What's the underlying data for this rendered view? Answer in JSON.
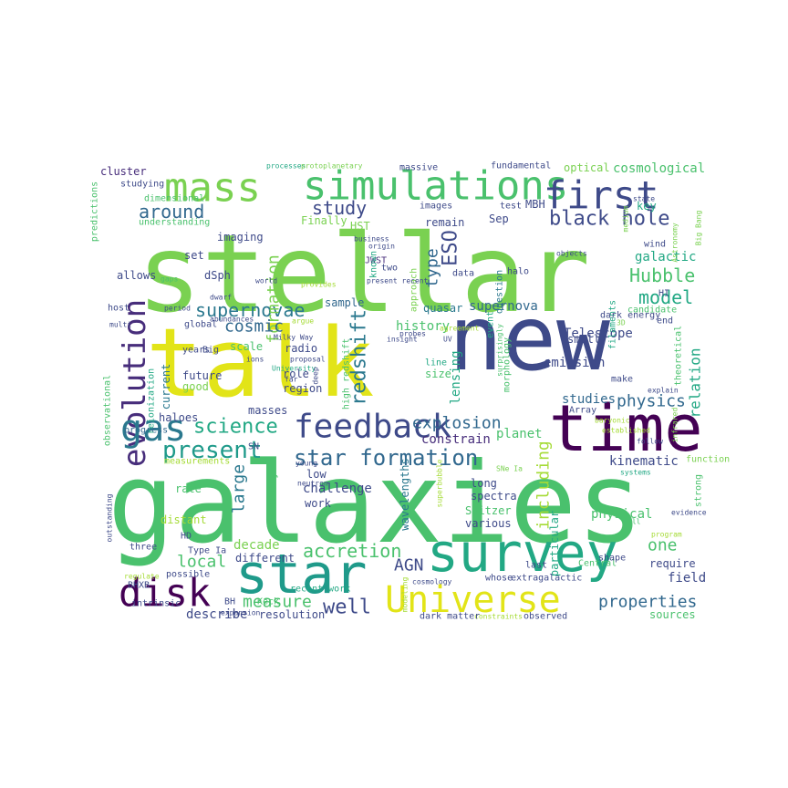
{
  "colors": {
    "yellow": "#e2e418",
    "lime": "#a5db36",
    "green": "#7ad151",
    "mint": "#4ac16d",
    "teal": "#22a884",
    "cyan": "#1f9a8a",
    "steel": "#2a788e",
    "blue": "#31688e",
    "indigo": "#3e4a89",
    "violet": "#472d7b",
    "purple": "#440154"
  },
  "words": [
    {
      "text": "galaxies",
      "color": "mint"
    },
    {
      "text": "stellar",
      "color": "green"
    },
    {
      "text": "new",
      "color": "indigo"
    },
    {
      "text": "talk",
      "color": "yellow"
    },
    {
      "text": "time",
      "color": "purple"
    },
    {
      "text": "survey",
      "color": "teal"
    },
    {
      "text": "star",
      "color": "cyan"
    },
    {
      "text": "disk",
      "color": "purple"
    },
    {
      "text": "Universe",
      "color": "yellow"
    },
    {
      "text": "mass",
      "color": "green"
    },
    {
      "text": "simulations",
      "color": "mint"
    },
    {
      "text": "first",
      "color": "indigo"
    },
    {
      "text": "evolution",
      "color": "violet"
    },
    {
      "text": "feedback",
      "color": "indigo"
    },
    {
      "text": "gas",
      "color": "steel"
    },
    {
      "text": "star formation",
      "color": "blue"
    },
    {
      "text": "science",
      "color": "teal"
    },
    {
      "text": "present",
      "color": "cyan"
    },
    {
      "text": "supernovae",
      "color": "steel"
    },
    {
      "text": "black hole",
      "color": "indigo"
    },
    {
      "text": "around",
      "color": "blue"
    },
    {
      "text": "study",
      "color": "indigo"
    },
    {
      "text": "Hubble",
      "color": "mint"
    },
    {
      "text": "model",
      "color": "teal"
    },
    {
      "text": "explosion",
      "color": "blue"
    },
    {
      "text": "accretion",
      "color": "mint"
    },
    {
      "text": "properties",
      "color": "blue"
    },
    {
      "text": "well",
      "color": "indigo"
    },
    {
      "text": "measure",
      "color": "mint"
    },
    {
      "text": "large",
      "color": "steel"
    },
    {
      "text": "local",
      "color": "mint"
    },
    {
      "text": "AGN",
      "color": "indigo"
    },
    {
      "text": "one",
      "color": "mint"
    },
    {
      "text": "physics",
      "color": "blue"
    },
    {
      "text": "redshift",
      "color": "steel"
    },
    {
      "text": "ESO",
      "color": "indigo"
    },
    {
      "text": "formation",
      "color": "green"
    },
    {
      "text": "cosmic",
      "color": "blue"
    },
    {
      "text": "type",
      "color": "blue"
    },
    {
      "text": "relation",
      "color": "teal"
    },
    {
      "text": "including",
      "color": "lime"
    },
    {
      "text": "cosmological",
      "color": "mint"
    },
    {
      "text": "Telescope",
      "color": "indigo"
    },
    {
      "text": "galactic",
      "color": "teal"
    },
    {
      "text": "field",
      "color": "indigo"
    },
    {
      "text": "supernova",
      "color": "blue"
    },
    {
      "text": "history",
      "color": "mint"
    },
    {
      "text": "studies",
      "color": "blue"
    },
    {
      "text": "constrain",
      "color": "violet"
    },
    {
      "text": "planet",
      "color": "mint"
    },
    {
      "text": "emission",
      "color": "indigo"
    },
    {
      "text": "lensing",
      "color": "teal"
    },
    {
      "text": "kinematic",
      "color": "indigo"
    },
    {
      "text": "describe",
      "color": "indigo"
    },
    {
      "text": "sources",
      "color": "mint"
    },
    {
      "text": "require",
      "color": "indigo"
    },
    {
      "text": "decade",
      "color": "green"
    },
    {
      "text": "physical",
      "color": "mint"
    },
    {
      "text": "discovery",
      "color": "mint"
    },
    {
      "text": "challenge",
      "color": "indigo"
    },
    {
      "text": "wavelengths",
      "color": "steel"
    },
    {
      "text": "spectra",
      "color": "indigo"
    },
    {
      "text": "particular",
      "color": "teal"
    },
    {
      "text": "Spitzer",
      "color": "mint"
    },
    {
      "text": "various",
      "color": "indigo"
    },
    {
      "text": "long",
      "color": "indigo"
    },
    {
      "text": "work",
      "color": "indigo"
    },
    {
      "text": "low",
      "color": "indigo"
    },
    {
      "text": "rate",
      "color": "mint"
    },
    {
      "text": "distant",
      "color": "lime"
    },
    {
      "text": "different",
      "color": "indigo"
    },
    {
      "text": "resolution",
      "color": "indigo"
    },
    {
      "text": "recent work",
      "color": "teal"
    },
    {
      "text": "measurements",
      "color": "lime"
    },
    {
      "text": "progress",
      "color": "blue"
    },
    {
      "text": "haloes",
      "color": "indigo"
    },
    {
      "text": "masses",
      "color": "indigo"
    },
    {
      "text": "SN",
      "color": "indigo"
    },
    {
      "text": "future",
      "color": "indigo"
    },
    {
      "text": "good",
      "color": "green"
    },
    {
      "text": "current",
      "color": "steel"
    },
    {
      "text": "reionization",
      "color": "teal"
    },
    {
      "text": "observational",
      "color": "mint"
    },
    {
      "text": "radio",
      "color": "indigo"
    },
    {
      "text": "scale",
      "color": "mint"
    },
    {
      "text": "role",
      "color": "indigo"
    },
    {
      "text": "region",
      "color": "indigo"
    },
    {
      "text": "high redshift",
      "color": "mint"
    },
    {
      "text": "size",
      "color": "mint"
    },
    {
      "text": "line",
      "color": "teal"
    },
    {
      "text": "morphology",
      "color": "mint"
    },
    {
      "text": "quasar",
      "color": "steel"
    },
    {
      "text": "sample",
      "color": "blue"
    },
    {
      "text": "dSph",
      "color": "indigo"
    },
    {
      "text": "allows",
      "color": "indigo"
    },
    {
      "text": "set",
      "color": "indigo"
    },
    {
      "text": "imaging",
      "color": "indigo"
    },
    {
      "text": "dimensional",
      "color": "mint"
    },
    {
      "text": "understanding",
      "color": "mint"
    },
    {
      "text": "studying",
      "color": "indigo"
    },
    {
      "text": "cluster",
      "color": "violet"
    },
    {
      "text": "predictions",
      "color": "mint"
    },
    {
      "text": "Finally",
      "color": "green"
    },
    {
      "text": "HST",
      "color": "green"
    },
    {
      "text": "images",
      "color": "indigo"
    },
    {
      "text": "remain",
      "color": "indigo"
    },
    {
      "text": "Sep",
      "color": "indigo"
    },
    {
      "text": "MBH",
      "color": "indigo"
    },
    {
      "text": "test",
      "color": "indigo"
    },
    {
      "text": "question",
      "color": "steel"
    },
    {
      "text": "approach",
      "color": "green"
    },
    {
      "text": "JWST",
      "color": "violet"
    },
    {
      "text": "two",
      "color": "indigo"
    },
    {
      "text": "data",
      "color": "indigo"
    },
    {
      "text": "halo",
      "color": "indigo"
    },
    {
      "text": "event",
      "color": "teal"
    },
    {
      "text": "filaments",
      "color": "teal"
    },
    {
      "text": "dark energy",
      "color": "indigo"
    },
    {
      "text": "candidate",
      "color": "mint"
    },
    {
      "text": "end",
      "color": "indigo"
    },
    {
      "text": "HI",
      "color": "indigo"
    },
    {
      "text": "wind",
      "color": "indigo"
    },
    {
      "text": "key",
      "color": "teal"
    },
    {
      "text": "optical",
      "color": "green"
    },
    {
      "text": "massive",
      "color": "indigo"
    },
    {
      "text": "fundamental",
      "color": "indigo"
    },
    {
      "text": "processes",
      "color": "teal"
    },
    {
      "text": "protoplanetary",
      "color": "green"
    },
    {
      "text": "Big Bang",
      "color": "green"
    },
    {
      "text": "Astronomy",
      "color": "green"
    },
    {
      "text": "state",
      "color": "indigo"
    },
    {
      "text": "medium",
      "color": "green"
    },
    {
      "text": "objects",
      "color": "indigo"
    },
    {
      "text": "3D",
      "color": "green"
    },
    {
      "text": "small",
      "color": "indigo"
    },
    {
      "text": "theoretical",
      "color": "mint"
    },
    {
      "text": "explain",
      "color": "indigo"
    },
    {
      "text": "make",
      "color": "indigo"
    },
    {
      "text": "surprisingly",
      "color": "mint"
    },
    {
      "text": "Array",
      "color": "indigo"
    },
    {
      "text": "baryonic",
      "color": "lime"
    },
    {
      "text": "established",
      "color": "lime"
    },
    {
      "text": "infrared",
      "color": "green"
    },
    {
      "text": "follow",
      "color": "indigo"
    },
    {
      "text": "function",
      "color": "green"
    },
    {
      "text": "systems",
      "color": "teal"
    },
    {
      "text": "strong",
      "color": "mint"
    },
    {
      "text": "evidence",
      "color": "indigo"
    },
    {
      "text": "ill",
      "color": "mint"
    },
    {
      "text": "program",
      "color": "lime"
    },
    {
      "text": "Central",
      "color": "mint"
    },
    {
      "text": "shape",
      "color": "indigo"
    },
    {
      "text": "last",
      "color": "indigo"
    },
    {
      "text": "extragalactic",
      "color": "indigo"
    },
    {
      "text": "observed",
      "color": "indigo"
    },
    {
      "text": "constraints",
      "color": "lime"
    },
    {
      "text": "dark matter",
      "color": "indigo"
    },
    {
      "text": "whose",
      "color": "indigo"
    },
    {
      "text": "cosmology",
      "color": "indigo"
    },
    {
      "text": "superbubble",
      "color": "lime"
    },
    {
      "text": "SNe Ia",
      "color": "green"
    },
    {
      "text": "neutron",
      "color": "indigo"
    },
    {
      "text": "modeling",
      "color": "lime"
    },
    {
      "text": "Keck",
      "color": "mint"
    },
    {
      "text": "expansion",
      "color": "indigo"
    },
    {
      "text": "intrinsic",
      "color": "indigo"
    },
    {
      "text": "BH",
      "color": "indigo"
    },
    {
      "text": "Type Ia",
      "color": "indigo"
    },
    {
      "text": "possible",
      "color": "indigo"
    },
    {
      "text": "HD",
      "color": "indigo"
    },
    {
      "text": "three",
      "color": "indigo"
    },
    {
      "text": "BHXB",
      "color": "indigo"
    },
    {
      "text": "regulate",
      "color": "lime"
    },
    {
      "text": "outstanding",
      "color": "indigo"
    },
    {
      "text": "young",
      "color": "indigo"
    },
    {
      "text": "multi",
      "color": "indigo"
    },
    {
      "text": "years",
      "color": "indigo"
    },
    {
      "text": "Big",
      "color": "indigo"
    },
    {
      "text": "ions",
      "color": "indigo"
    },
    {
      "text": "global",
      "color": "indigo"
    },
    {
      "text": "abundances",
      "color": "indigo"
    },
    {
      "text": "Milky Way",
      "color": "indigo"
    },
    {
      "text": "argue",
      "color": "lime"
    },
    {
      "text": "dwarf",
      "color": "indigo"
    },
    {
      "text": "period",
      "color": "indigo"
    },
    {
      "text": "host",
      "color": "indigo"
    },
    {
      "text": "gaps",
      "color": "mint"
    },
    {
      "text": "world",
      "color": "indigo"
    },
    {
      "text": "proposal",
      "color": "indigo"
    },
    {
      "text": "University",
      "color": "teal"
    },
    {
      "text": "far",
      "color": "indigo"
    },
    {
      "text": "deep",
      "color": "indigo"
    },
    {
      "text": "known",
      "color": "teal"
    },
    {
      "text": "business",
      "color": "indigo"
    },
    {
      "text": "origin",
      "color": "indigo"
    },
    {
      "text": "provides",
      "color": "lime"
    },
    {
      "text": "present recent",
      "color": "indigo"
    },
    {
      "text": "insight",
      "color": "indigo"
    },
    {
      "text": "probes",
      "color": "indigo"
    },
    {
      "text": "agreement",
      "color": "lime"
    },
    {
      "text": "UV",
      "color": "indigo"
    }
  ]
}
